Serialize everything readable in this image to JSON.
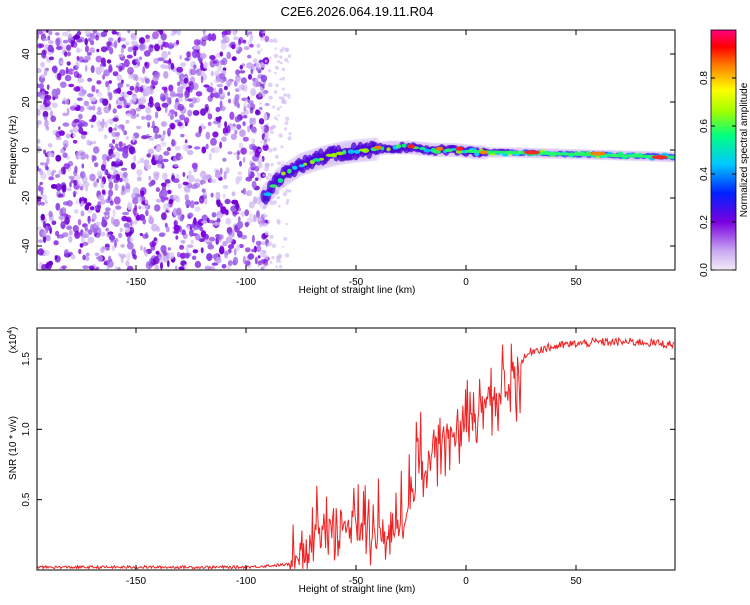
{
  "title": "C2E6.2026.064.19.11.R04",
  "chart_data": [
    {
      "type": "heatmap",
      "xlabel": "Height of straight line (km)",
      "ylabel": "Frequency (Hz)",
      "xlim": [
        -195,
        95
      ],
      "ylim": [
        -50,
        50
      ],
      "xticks": [
        -150,
        -100,
        -50,
        0,
        50
      ],
      "yticks": [
        -40,
        -20,
        0,
        20,
        40
      ],
      "colorbar": {
        "label": "Normalized spectral amplitude",
        "range": [
          0,
          1
        ],
        "ticks": [
          0.0,
          0.2,
          0.4,
          0.6,
          0.8
        ],
        "colormap": "rainbow",
        "colors": [
          "#e6d9f2",
          "#7a00e0",
          "#0000ff",
          "#00c8ff",
          "#00ff80",
          "#a0ff00",
          "#ffff00",
          "#ff8000",
          "#ff0000",
          "#ff0080"
        ]
      },
      "ridge": [
        {
          "x": -92,
          "y": -20
        },
        {
          "x": -85,
          "y": -12
        },
        {
          "x": -75,
          "y": -6
        },
        {
          "x": -65,
          "y": -3
        },
        {
          "x": -55,
          "y": -1
        },
        {
          "x": -45,
          "y": 0
        },
        {
          "x": -35,
          "y": 1
        },
        {
          "x": -25,
          "y": 1
        },
        {
          "x": -15,
          "y": 0
        },
        {
          "x": -5,
          "y": 0
        },
        {
          "x": 5,
          "y": -1
        },
        {
          "x": 20,
          "y": -1
        },
        {
          "x": 40,
          "y": -1.5
        },
        {
          "x": 60,
          "y": -2
        },
        {
          "x": 80,
          "y": -2.5
        },
        {
          "x": 95,
          "y": -3
        }
      ],
      "grid": false
    },
    {
      "type": "line",
      "xlabel": "Height of straight line (km)",
      "ylabel": "SNR (10 * v/v)",
      "y_multiplier": "(x10",
      "y_multiplier_exp": "4",
      "y_multiplier_close": ")",
      "xlim": [
        -195,
        95
      ],
      "ylim": [
        0,
        1.72
      ],
      "xticks": [
        -150,
        -100,
        -50,
        0,
        50
      ],
      "yticks": [
        0.5,
        1.0,
        1.5
      ],
      "series": [
        {
          "color": "#ee2222",
          "points": [
            {
              "x": -195,
              "y": 0.02
            },
            {
              "x": -100,
              "y": 0.02
            },
            {
              "x": -80,
              "y": 0.04
            },
            {
              "x": -72,
              "y": 0.15
            },
            {
              "x": -65,
              "y": 0.25
            },
            {
              "x": -55,
              "y": 0.3
            },
            {
              "x": -45,
              "y": 0.28
            },
            {
              "x": -35,
              "y": 0.22
            },
            {
              "x": -28,
              "y": 0.35
            },
            {
              "x": -22,
              "y": 0.65
            },
            {
              "x": -18,
              "y": 0.75
            },
            {
              "x": -12,
              "y": 0.9
            },
            {
              "x": -5,
              "y": 1.0
            },
            {
              "x": 5,
              "y": 1.1
            },
            {
              "x": 12,
              "y": 1.25
            },
            {
              "x": 20,
              "y": 1.4
            },
            {
              "x": 30,
              "y": 1.56
            },
            {
              "x": 45,
              "y": 1.6
            },
            {
              "x": 60,
              "y": 1.62
            },
            {
              "x": 80,
              "y": 1.62
            },
            {
              "x": 95,
              "y": 1.6
            }
          ]
        }
      ],
      "grid": false
    }
  ]
}
